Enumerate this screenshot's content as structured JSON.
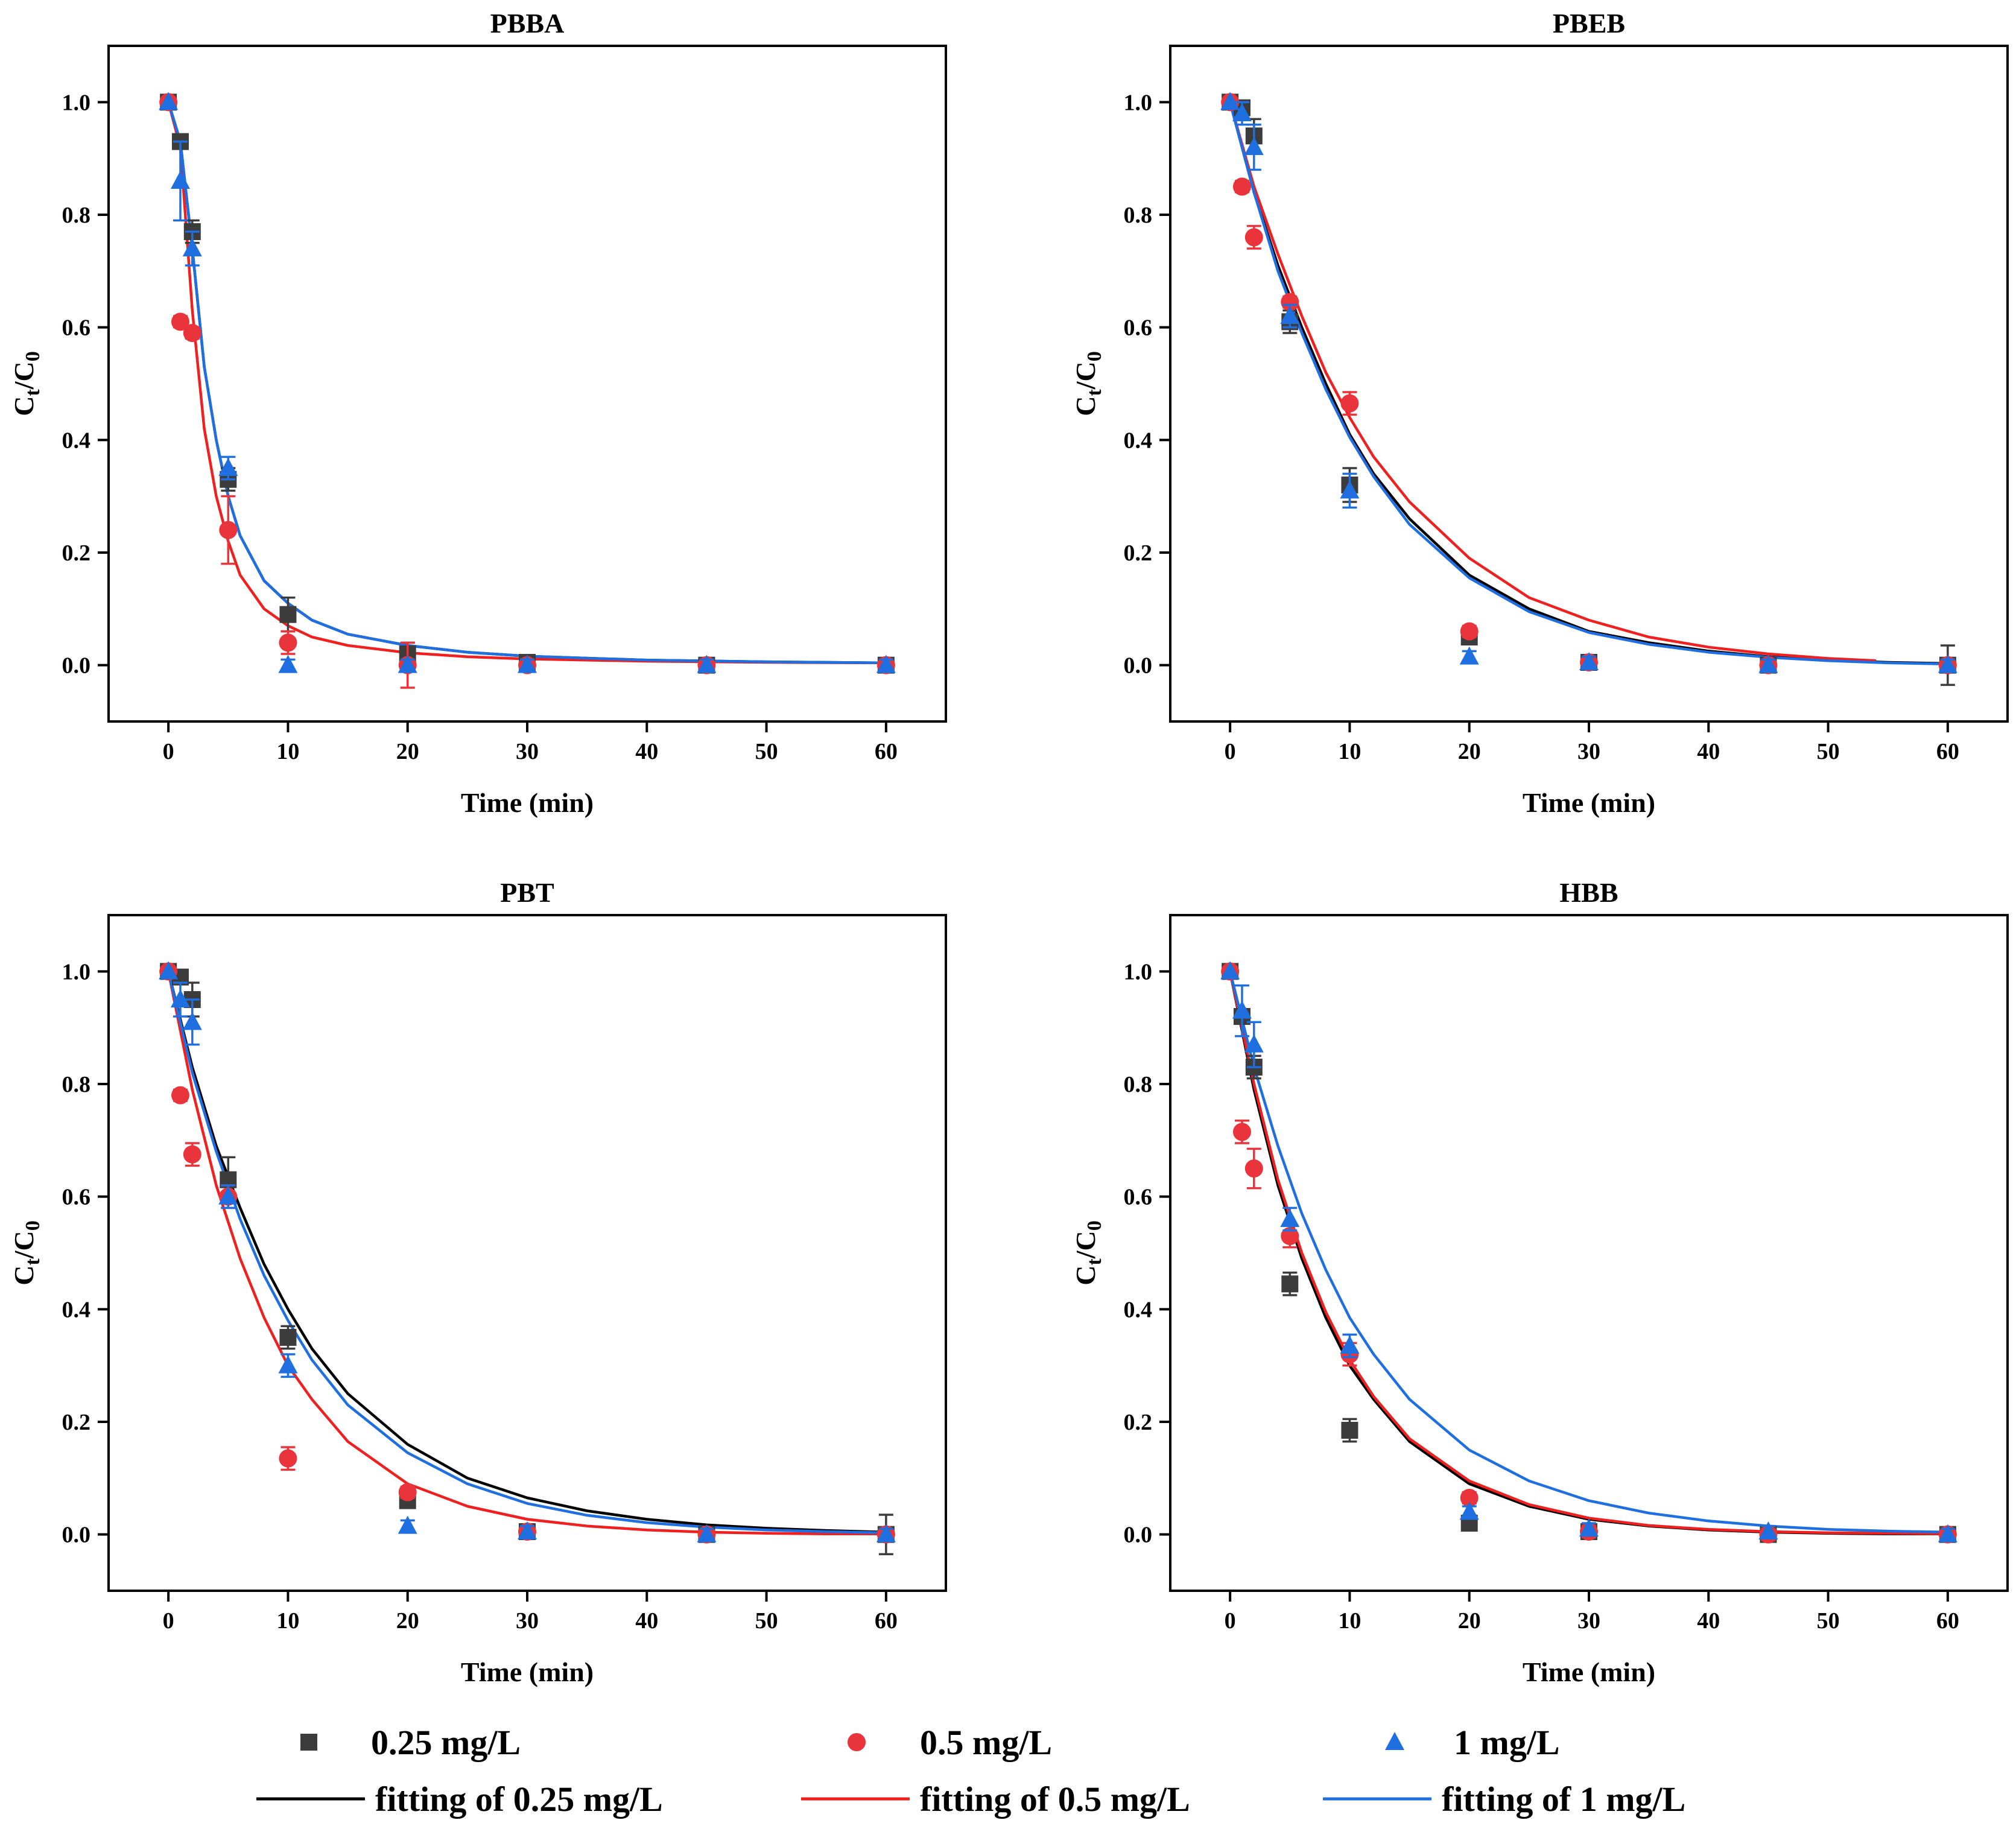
{
  "legend": {
    "series": [
      {
        "label": "0.25 mg/L",
        "marker": "square",
        "color": "#3c3c3c"
      },
      {
        "label": "0.5 mg/L",
        "marker": "circle",
        "color": "#e8343a"
      },
      {
        "label": "1 mg/L",
        "marker": "triangle",
        "color": "#1f6fe0"
      }
    ],
    "fits": [
      {
        "label": "fitting of 0.25 mg/L",
        "color": "#000000"
      },
      {
        "label": "fitting of 0.5 mg/L",
        "color": "#ee2020"
      },
      {
        "label": "fitting of 1 mg/L",
        "color": "#1f6fe0"
      }
    ]
  },
  "chart_data": [
    {
      "type": "scatter",
      "title": "PBBA",
      "xlabel": "Time (min)",
      "ylabel_main": "C",
      "ylabel_sub1": "t",
      "ylabel_sep": "/C",
      "ylabel_sub2": "0",
      "xlim": [
        -5,
        65
      ],
      "ylim": [
        -0.1,
        1.1
      ],
      "xticks": [
        0,
        10,
        20,
        30,
        40,
        50,
        60
      ],
      "xtick_labels": [
        "0",
        "10",
        "20",
        "30",
        "40",
        "50",
        "60"
      ],
      "yticks": [
        0,
        0.2,
        0.4,
        0.6,
        0.8,
        1.0
      ],
      "ytick_labels": [
        "0.0",
        "0.2",
        "0.4",
        "0.6",
        "0.8",
        "1.0"
      ],
      "series": [
        {
          "name": "0.25 mg/L",
          "x": [
            0,
            1,
            2,
            5,
            10,
            20,
            30,
            45,
            60
          ],
          "y": [
            1.0,
            0.93,
            0.77,
            0.33,
            0.09,
            0.02,
            0.005,
            0.0,
            0.0
          ],
          "err": [
            0,
            0.01,
            0.02,
            0.02,
            0.03,
            0.02,
            0.01,
            0.01,
            0.01
          ]
        },
        {
          "name": "0.5 mg/L",
          "x": [
            0,
            1,
            2,
            5,
            10,
            20,
            30,
            45,
            60
          ],
          "y": [
            1.0,
            0.61,
            0.59,
            0.24,
            0.04,
            0.0,
            0.0,
            0.0,
            0.0
          ],
          "err": [
            0,
            0.01,
            0.01,
            0.06,
            0.02,
            0.04,
            0.01,
            0.01,
            0.01
          ]
        },
        {
          "name": "1 mg/L",
          "x": [
            0,
            1,
            2,
            5,
            10,
            20,
            30,
            45,
            60
          ],
          "y": [
            1.0,
            0.86,
            0.74,
            0.35,
            0.0,
            0.0,
            0.0,
            0.0,
            0.0
          ],
          "err": [
            0,
            0.07,
            0.03,
            0.02,
            0.01,
            0.01,
            0.01,
            0.01,
            0.01
          ]
        }
      ],
      "fits": [
        {
          "name": "fitting of 0.25 mg/L",
          "x": [
            0,
            1,
            2,
            3,
            4,
            5,
            6,
            8,
            10,
            12,
            15,
            20,
            25,
            30,
            40,
            50,
            60
          ],
          "y": [
            1.0,
            0.93,
            0.74,
            0.53,
            0.4,
            0.3,
            0.23,
            0.15,
            0.11,
            0.08,
            0.055,
            0.035,
            0.023,
            0.016,
            0.009,
            0.006,
            0.004
          ]
        },
        {
          "name": "fitting of 0.5 mg/L",
          "x": [
            0,
            1,
            2,
            3,
            4,
            5,
            6,
            8,
            10,
            12,
            15,
            20,
            25,
            30,
            40,
            50,
            60
          ],
          "y": [
            1.0,
            0.92,
            0.63,
            0.42,
            0.3,
            0.22,
            0.16,
            0.1,
            0.07,
            0.05,
            0.035,
            0.022,
            0.015,
            0.011,
            0.007,
            0.005,
            0.004
          ]
        },
        {
          "name": "fitting of 1 mg/L",
          "x": [
            0,
            1,
            2,
            3,
            4,
            5,
            6,
            8,
            10,
            12,
            15,
            20,
            25,
            30,
            40,
            50,
            60
          ],
          "y": [
            1.0,
            0.93,
            0.74,
            0.53,
            0.4,
            0.3,
            0.23,
            0.15,
            0.11,
            0.08,
            0.055,
            0.035,
            0.023,
            0.016,
            0.009,
            0.006,
            0.004
          ]
        }
      ]
    },
    {
      "type": "scatter",
      "title": "PBEB",
      "xlabel": "Time (min)",
      "ylabel_main": "C",
      "ylabel_sub1": "t",
      "ylabel_sep": "/C",
      "ylabel_sub2": "0",
      "xlim": [
        -5,
        65
      ],
      "ylim": [
        -0.1,
        1.1
      ],
      "xticks": [
        0,
        10,
        20,
        30,
        40,
        50,
        60
      ],
      "xtick_labels": [
        "0",
        "10",
        "20",
        "30",
        "40",
        "50",
        "60"
      ],
      "yticks": [
        0,
        0.2,
        0.4,
        0.6,
        0.8,
        1.0
      ],
      "ytick_labels": [
        "0.0",
        "0.2",
        "0.4",
        "0.6",
        "0.8",
        "1.0"
      ],
      "series": [
        {
          "name": "0.25 mg/L",
          "x": [
            0,
            1,
            2,
            5,
            10,
            20,
            30,
            45,
            60
          ],
          "y": [
            1.0,
            0.99,
            0.94,
            0.61,
            0.32,
            0.05,
            0.005,
            0.0,
            0.0
          ],
          "err": [
            0,
            0.01,
            0.03,
            0.02,
            0.03,
            0.01,
            0.01,
            0.01,
            0.035
          ]
        },
        {
          "name": "0.5 mg/L",
          "x": [
            0,
            1,
            2,
            5,
            10,
            20,
            30,
            45,
            60
          ],
          "y": [
            1.0,
            0.85,
            0.76,
            0.645,
            0.465,
            0.06,
            0.005,
            0.0,
            0.0
          ],
          "err": [
            0,
            0.01,
            0.02,
            0.01,
            0.02,
            0.01,
            0.01,
            0.01,
            0.01
          ]
        },
        {
          "name": "1 mg/L",
          "x": [
            0,
            1,
            2,
            5,
            10,
            20,
            30,
            45,
            60
          ],
          "y": [
            1.0,
            0.98,
            0.92,
            0.62,
            0.31,
            0.015,
            0.005,
            0.0,
            0.0
          ],
          "err": [
            0,
            0.02,
            0.04,
            0.02,
            0.03,
            0.01,
            0.01,
            0.01,
            0.01
          ]
        }
      ],
      "fits": [
        {
          "name": "fitting of 0.25 mg/L",
          "x": [
            0,
            2,
            4,
            6,
            8,
            10,
            12,
            15,
            20,
            25,
            30,
            35,
            40,
            45,
            50,
            55,
            60
          ],
          "y": [
            1.0,
            0.84,
            0.71,
            0.6,
            0.5,
            0.41,
            0.34,
            0.26,
            0.16,
            0.1,
            0.06,
            0.04,
            0.025,
            0.015,
            0.009,
            0.005,
            0.003
          ]
        },
        {
          "name": "fitting of 0.5 mg/L",
          "x": [
            0,
            2,
            4,
            6,
            8,
            10,
            12,
            15,
            20,
            25,
            30,
            35,
            40,
            45,
            50,
            54
          ],
          "y": [
            1.0,
            0.85,
            0.73,
            0.62,
            0.52,
            0.44,
            0.37,
            0.29,
            0.19,
            0.12,
            0.08,
            0.05,
            0.032,
            0.02,
            0.012,
            0.008
          ]
        },
        {
          "name": "fitting of 1 mg/L",
          "x": [
            0,
            2,
            4,
            6,
            8,
            10,
            12,
            15,
            20,
            25,
            30,
            35,
            40,
            45,
            50,
            55,
            60
          ],
          "y": [
            1.0,
            0.84,
            0.7,
            0.59,
            0.49,
            0.405,
            0.335,
            0.25,
            0.155,
            0.095,
            0.058,
            0.037,
            0.023,
            0.014,
            0.008,
            0.004,
            0.002
          ]
        }
      ]
    },
    {
      "type": "scatter",
      "title": "PBT",
      "xlabel": "Time (min)",
      "ylabel_main": "C",
      "ylabel_sub1": "t",
      "ylabel_sep": "/C",
      "ylabel_sub2": "0",
      "xlim": [
        -5,
        65
      ],
      "ylim": [
        -0.1,
        1.1
      ],
      "xticks": [
        0,
        10,
        20,
        30,
        40,
        50,
        60
      ],
      "xtick_labels": [
        "0",
        "10",
        "20",
        "30",
        "40",
        "50",
        "60"
      ],
      "yticks": [
        0,
        0.2,
        0.4,
        0.6,
        0.8,
        1.0
      ],
      "ytick_labels": [
        "0.0",
        "0.2",
        "0.4",
        "0.6",
        "0.8",
        "1.0"
      ],
      "series": [
        {
          "name": "0.25 mg/L",
          "x": [
            0,
            1,
            2,
            5,
            10,
            20,
            30,
            45,
            60
          ],
          "y": [
            1.0,
            0.99,
            0.95,
            0.63,
            0.35,
            0.06,
            0.005,
            0.0,
            0.0
          ],
          "err": [
            0,
            0.01,
            0.03,
            0.04,
            0.02,
            0.01,
            0.01,
            0.01,
            0.035
          ]
        },
        {
          "name": "0.5 mg/L",
          "x": [
            0,
            1,
            2,
            5,
            10,
            20,
            30,
            45,
            60
          ],
          "y": [
            1.0,
            0.78,
            0.675,
            0.6,
            0.135,
            0.075,
            0.005,
            0.0,
            0.0
          ],
          "err": [
            0,
            0.01,
            0.02,
            0.02,
            0.02,
            0.01,
            0.01,
            0.01,
            0.01
          ]
        },
        {
          "name": "1 mg/L",
          "x": [
            0,
            1,
            2,
            5,
            10,
            20,
            30,
            45,
            60
          ],
          "y": [
            1.0,
            0.95,
            0.91,
            0.6,
            0.3,
            0.015,
            0.005,
            0.0,
            0.0
          ],
          "err": [
            0,
            0.03,
            0.04,
            0.02,
            0.02,
            0.01,
            0.01,
            0.01,
            0.01
          ]
        }
      ],
      "fits": [
        {
          "name": "fitting of 0.25 mg/L",
          "x": [
            0,
            2,
            4,
            6,
            8,
            10,
            12,
            15,
            20,
            25,
            30,
            35,
            40,
            45,
            50,
            55,
            60
          ],
          "y": [
            1.0,
            0.83,
            0.69,
            0.58,
            0.48,
            0.4,
            0.33,
            0.25,
            0.16,
            0.1,
            0.065,
            0.042,
            0.027,
            0.017,
            0.011,
            0.007,
            0.004
          ]
        },
        {
          "name": "fitting of 0.5 mg/L",
          "x": [
            0,
            2,
            4,
            6,
            8,
            10,
            12,
            15,
            20,
            25,
            30,
            35,
            40,
            45,
            50,
            55,
            60
          ],
          "y": [
            1.0,
            0.79,
            0.62,
            0.49,
            0.385,
            0.3,
            0.24,
            0.165,
            0.09,
            0.05,
            0.027,
            0.015,
            0.008,
            0.004,
            0.002,
            0.001,
            0.001
          ]
        },
        {
          "name": "fitting of 1 mg/L",
          "x": [
            0,
            2,
            4,
            6,
            8,
            10,
            12,
            15,
            20,
            25,
            30,
            35,
            40,
            45,
            50,
            55,
            60
          ],
          "y": [
            1.0,
            0.82,
            0.68,
            0.56,
            0.46,
            0.38,
            0.31,
            0.23,
            0.145,
            0.09,
            0.055,
            0.034,
            0.021,
            0.013,
            0.008,
            0.005,
            0.003
          ]
        }
      ]
    },
    {
      "type": "scatter",
      "title": "HBB",
      "xlabel": "Time (min)",
      "ylabel_main": "C",
      "ylabel_sub1": "t",
      "ylabel_sep": "/C",
      "ylabel_sub2": "0",
      "xlim": [
        -5,
        65
      ],
      "ylim": [
        -0.1,
        1.1
      ],
      "xticks": [
        0,
        10,
        20,
        30,
        40,
        50,
        60
      ],
      "xtick_labels": [
        "0",
        "10",
        "20",
        "30",
        "40",
        "50",
        "60"
      ],
      "yticks": [
        0,
        0.2,
        0.4,
        0.6,
        0.8,
        1.0
      ],
      "ytick_labels": [
        "0.0",
        "0.2",
        "0.4",
        "0.6",
        "0.8",
        "1.0"
      ],
      "series": [
        {
          "name": "0.25 mg/L",
          "x": [
            0,
            1,
            2,
            5,
            10,
            20,
            30,
            45,
            60
          ],
          "y": [
            1.0,
            0.92,
            0.83,
            0.445,
            0.185,
            0.02,
            0.005,
            0.0,
            0.0
          ],
          "err": [
            0,
            0.01,
            0.02,
            0.02,
            0.02,
            0.01,
            0.01,
            0.01,
            0.01
          ]
        },
        {
          "name": "0.5 mg/L",
          "x": [
            0,
            1,
            2,
            5,
            10,
            20,
            30,
            45,
            60
          ],
          "y": [
            1.0,
            0.715,
            0.65,
            0.53,
            0.32,
            0.065,
            0.005,
            0.0,
            0.0
          ],
          "err": [
            0,
            0.02,
            0.035,
            0.02,
            0.02,
            0.01,
            0.01,
            0.01,
            0.01
          ]
        },
        {
          "name": "1 mg/L",
          "x": [
            0,
            1,
            2,
            5,
            10,
            20,
            30,
            45,
            60
          ],
          "y": [
            1.0,
            0.93,
            0.87,
            0.56,
            0.335,
            0.04,
            0.01,
            0.005,
            0.0
          ],
          "err": [
            0,
            0.045,
            0.04,
            0.02,
            0.02,
            0.01,
            0.01,
            0.01,
            0.01
          ]
        }
      ],
      "fits": [
        {
          "name": "fitting of 0.25 mg/L",
          "x": [
            0,
            2,
            4,
            6,
            8,
            10,
            12,
            15,
            20,
            25,
            30,
            35,
            40,
            45,
            50,
            55,
            60
          ],
          "y": [
            1.0,
            0.79,
            0.62,
            0.49,
            0.385,
            0.3,
            0.24,
            0.165,
            0.09,
            0.05,
            0.027,
            0.015,
            0.008,
            0.004,
            0.002,
            0.001,
            0.001
          ]
        },
        {
          "name": "fitting of 0.5 mg/L",
          "x": [
            0,
            2,
            4,
            6,
            8,
            10,
            12,
            15,
            20,
            25,
            30,
            35,
            40,
            45,
            50,
            55,
            60
          ],
          "y": [
            1.0,
            0.8,
            0.63,
            0.5,
            0.395,
            0.31,
            0.245,
            0.17,
            0.095,
            0.053,
            0.029,
            0.016,
            0.009,
            0.005,
            0.003,
            0.002,
            0.001
          ]
        },
        {
          "name": "fitting of 1 mg/L",
          "x": [
            0,
            2,
            4,
            6,
            8,
            10,
            12,
            15,
            20,
            25,
            30,
            35,
            40,
            45,
            50,
            55,
            60
          ],
          "y": [
            1.0,
            0.83,
            0.69,
            0.57,
            0.47,
            0.385,
            0.32,
            0.24,
            0.15,
            0.095,
            0.06,
            0.038,
            0.024,
            0.015,
            0.009,
            0.006,
            0.004
          ]
        }
      ]
    }
  ]
}
